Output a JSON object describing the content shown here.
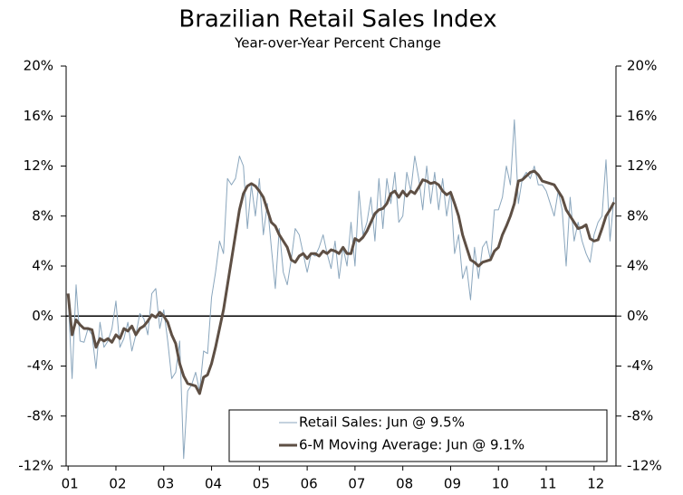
{
  "chart_data": {
    "type": "line",
    "title": "Brazilian Retail Sales Index",
    "subtitle": "Year-over-Year Percent Change",
    "categories": [
      "01",
      null,
      null,
      null,
      null,
      null,
      null,
      null,
      null,
      null,
      null,
      null,
      "02",
      null,
      null,
      null,
      null,
      null,
      null,
      null,
      null,
      null,
      null,
      null,
      "03",
      null,
      null,
      null,
      null,
      null,
      null,
      null,
      null,
      null,
      null,
      null,
      "04",
      null,
      null,
      null,
      null,
      null,
      null,
      null,
      null,
      null,
      null,
      null,
      "05",
      null,
      null,
      null,
      null,
      null,
      null,
      null,
      null,
      null,
      null,
      null,
      "06",
      null,
      null,
      null,
      null,
      null,
      null,
      null,
      null,
      null,
      null,
      null,
      "07",
      null,
      null,
      null,
      null,
      null,
      null,
      null,
      null,
      null,
      null,
      null,
      "08",
      null,
      null,
      null,
      null,
      null,
      null,
      null,
      null,
      null,
      null,
      null,
      "09",
      null,
      null,
      null,
      null,
      null,
      null,
      null,
      null,
      null,
      null,
      null,
      "10",
      null,
      null,
      null,
      null,
      null,
      null,
      null,
      null,
      null,
      null,
      null,
      "11",
      null,
      null,
      null,
      null,
      null,
      null,
      null,
      null,
      null,
      null,
      null,
      "12",
      null,
      null,
      null,
      null,
      null
    ],
    "series": [
      {
        "name": "Retail Sales: Jun @ 9.5%",
        "color": "#8aa6bd",
        "linewidth": 1,
        "values": [
          1.5,
          -5.0,
          2.5,
          -2.0,
          -2.1,
          -1.0,
          -1.5,
          -4.2,
          -0.5,
          -2.5,
          -2.0,
          -1.0,
          1.2,
          -2.5,
          -1.8,
          -0.5,
          -2.8,
          -1.5,
          0.2,
          -0.2,
          -1.5,
          1.8,
          2.2,
          -1.0,
          0.5,
          -2.0,
          -5.0,
          -4.5,
          -2.0,
          -11.4,
          -6.0,
          -5.5,
          -4.5,
          -6.0,
          -2.8,
          -3.0,
          1.5,
          3.5,
          6.0,
          5.0,
          11.0,
          10.5,
          11.0,
          12.8,
          12.0,
          7.0,
          10.5,
          8.0,
          11.0,
          6.5,
          9.0,
          5.5,
          2.2,
          7.0,
          3.5,
          2.5,
          4.5,
          7.0,
          6.5,
          5.0,
          3.5,
          5.0,
          4.8,
          5.5,
          6.5,
          5.0,
          3.8,
          6.0,
          3.0,
          5.5,
          4.0,
          7.5,
          4.0,
          10.0,
          6.5,
          7.5,
          9.5,
          6.0,
          11.0,
          7.0,
          11.0,
          9.0,
          11.5,
          7.5,
          8.0,
          11.5,
          10.0,
          12.8,
          11.0,
          8.5,
          12.0,
          9.0,
          11.5,
          8.5,
          11.0,
          8.0,
          10.0,
          5.0,
          6.5,
          3.0,
          4.0,
          1.3,
          5.5,
          3.0,
          5.5,
          6.0,
          4.5,
          8.5,
          8.5,
          9.5,
          12.0,
          10.5,
          15.7,
          9.0,
          11.0,
          11.5,
          11.0,
          12.0,
          10.5,
          10.5,
          10.0,
          9.0,
          8.0,
          10.0,
          8.5,
          4.0,
          9.5,
          6.0,
          7.5,
          6.0,
          5.0,
          4.3,
          6.5,
          7.5,
          8.0,
          12.5,
          6.0,
          9.5
        ]
      },
      {
        "name": "6-M Moving Average: Jun @ 9.1%",
        "color": "#5e4f44",
        "linewidth": 3,
        "values": [
          1.8,
          -1.5,
          -0.3,
          -0.7,
          -1.0,
          -1.0,
          -1.1,
          -2.5,
          -1.8,
          -2.0,
          -1.8,
          -2.1,
          -1.5,
          -1.8,
          -1.0,
          -1.2,
          -0.8,
          -1.5,
          -1.0,
          -0.8,
          -0.4,
          0.1,
          -0.1,
          0.3,
          0.0,
          -0.5,
          -1.5,
          -2.2,
          -3.8,
          -4.8,
          -5.4,
          -5.5,
          -5.6,
          -6.2,
          -4.9,
          -4.7,
          -3.8,
          -2.5,
          -1.0,
          0.5,
          2.5,
          4.5,
          6.5,
          8.5,
          9.8,
          10.4,
          10.6,
          10.4,
          10.0,
          9.5,
          8.5,
          7.5,
          7.2,
          6.5,
          6.0,
          5.5,
          4.5,
          4.3,
          4.8,
          5.0,
          4.6,
          5.0,
          5.0,
          4.8,
          5.2,
          5.0,
          5.3,
          5.2,
          5.0,
          5.5,
          5.0,
          5.0,
          6.2,
          6.0,
          6.3,
          6.8,
          7.5,
          8.2,
          8.5,
          8.6,
          9.0,
          9.8,
          10.0,
          9.5,
          10.0,
          9.6,
          10.0,
          9.8,
          10.3,
          10.9,
          10.8,
          10.6,
          10.7,
          10.5,
          10.0,
          9.7,
          9.9,
          9.0,
          8.0,
          6.5,
          5.5,
          4.5,
          4.3,
          4.0,
          4.3,
          4.4,
          4.5,
          5.2,
          5.5,
          6.5,
          7.2,
          8.0,
          9.0,
          10.8,
          10.9,
          11.2,
          11.5,
          11.6,
          11.3,
          10.8,
          10.7,
          10.6,
          10.5,
          10.0,
          9.5,
          8.5,
          8.0,
          7.5,
          7.0,
          7.1,
          7.3,
          6.2,
          6.0,
          6.1,
          7.0,
          8.0,
          8.5,
          9.1
        ]
      }
    ],
    "ylim": [
      -12,
      20
    ],
    "yticks": [
      {
        "value": -12,
        "label": "-12%"
      },
      {
        "value": -8,
        "label": "-8%"
      },
      {
        "value": -4,
        "label": "-4%"
      },
      {
        "value": 0,
        "label": "0%"
      },
      {
        "value": 4,
        "label": "4%"
      },
      {
        "value": 8,
        "label": "8%"
      },
      {
        "value": 12,
        "label": "12%"
      },
      {
        "value": 16,
        "label": "16%"
      },
      {
        "value": 20,
        "label": "20%"
      }
    ],
    "y2lim": [
      -12,
      20
    ],
    "y2ticks": [
      {
        "value": -12,
        "label": "-12%"
      },
      {
        "value": -8,
        "label": "-8%"
      },
      {
        "value": -4,
        "label": "-4%"
      },
      {
        "value": 0,
        "label": "0%"
      },
      {
        "value": 4,
        "label": "4%"
      },
      {
        "value": 8,
        "label": "8%"
      },
      {
        "value": 12,
        "label": "12%"
      },
      {
        "value": 16,
        "label": "16%"
      },
      {
        "value": 20,
        "label": "20%"
      }
    ],
    "grid": false,
    "legend": "lower right"
  }
}
